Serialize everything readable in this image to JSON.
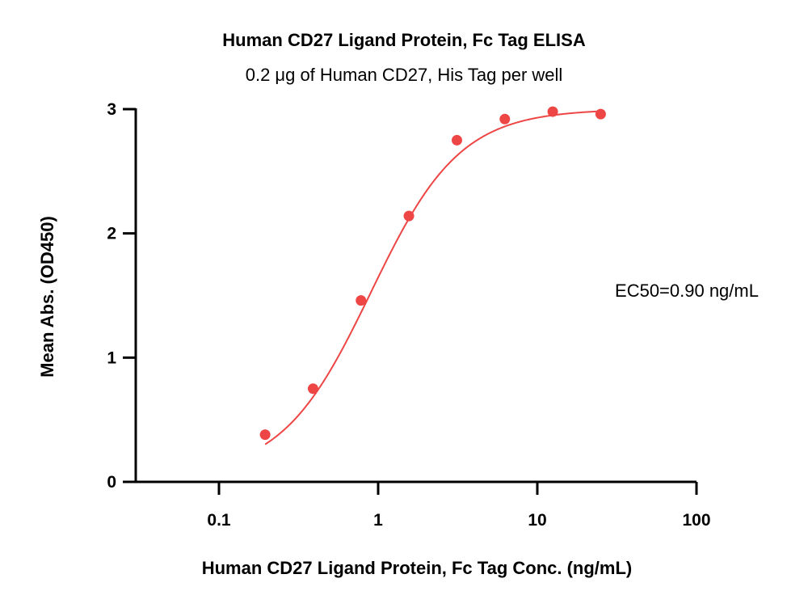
{
  "chart_data": {
    "type": "scatter",
    "title": "Human CD27 Ligand Protein, Fc Tag ELISA",
    "subtitle": "0.2 μg of Human CD27, His Tag per well",
    "xlabel": "Human CD27 Ligand Protein, Fc Tag Conc. (ng/mL)",
    "ylabel": "Mean Abs. (OD450)",
    "x_scale": "log",
    "xlim": [
      0.03,
      100
    ],
    "ylim": [
      0,
      3
    ],
    "x_ticks": [
      {
        "value": 0.1,
        "label": "0.1"
      },
      {
        "value": 1,
        "label": "1"
      },
      {
        "value": 10,
        "label": "10"
      },
      {
        "value": 100,
        "label": "100"
      }
    ],
    "y_ticks": [
      {
        "value": 0,
        "label": "0"
      },
      {
        "value": 1,
        "label": "1"
      },
      {
        "value": 2,
        "label": "2"
      },
      {
        "value": 3,
        "label": "3"
      }
    ],
    "grid": false,
    "legend": "none",
    "series": [
      {
        "x": [
          0.195,
          0.39,
          0.78,
          1.56,
          3.125,
          6.25,
          12.5,
          25
        ],
        "y": [
          0.38,
          0.75,
          1.46,
          2.14,
          2.75,
          2.92,
          2.98,
          2.96
        ]
      }
    ],
    "fit": {
      "model": "4PL",
      "bottom": 0.05,
      "top": 3.0,
      "ec50": 0.9,
      "hill": 1.55
    },
    "annotations": [
      {
        "text": "EC50=0.90 ng/mL"
      }
    ],
    "colors": {
      "points": "#ee4545",
      "curve": "#ee4545",
      "axes": "#000000"
    }
  }
}
